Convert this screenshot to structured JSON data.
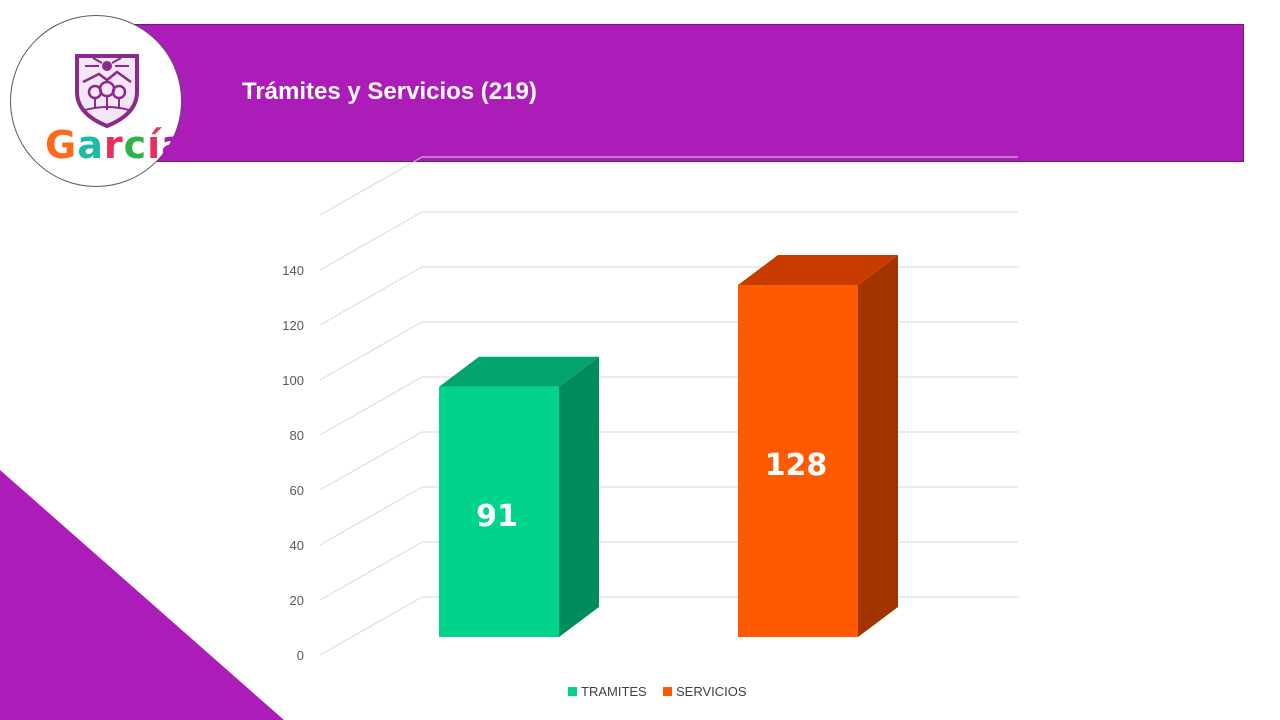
{
  "header": {
    "title": "Trámites y Servicios (219)",
    "banner_color": "#ac1cb8"
  },
  "logo": {
    "letters": [
      {
        "ch": "G",
        "color": "#ff6a1a"
      },
      {
        "ch": "a",
        "color": "#1db8a6"
      },
      {
        "ch": "r",
        "color": "#e8305c"
      },
      {
        "ch": "c",
        "color": "#2db34a"
      },
      {
        "ch": "í",
        "color": "#e8305c"
      },
      {
        "ch": "a",
        "color": "#ac1cb8"
      }
    ],
    "crest_color": "#8a2a8c"
  },
  "chart_data": {
    "type": "bar",
    "categories": [
      "TRAMITES",
      "SERVICIOS"
    ],
    "values": [
      91,
      128
    ],
    "colors": [
      "#00d48a",
      "#ff5a00"
    ],
    "side_colors": [
      "#008c5c",
      "#a33400"
    ],
    "top_colors": [
      "#00a46c",
      "#c83c00"
    ],
    "ylim": [
      0,
      140
    ],
    "yticks": [
      0,
      20,
      40,
      60,
      80,
      100,
      120,
      140
    ],
    "grid": true,
    "legend": "bottom",
    "title": "",
    "xlabel": "",
    "ylabel": ""
  }
}
